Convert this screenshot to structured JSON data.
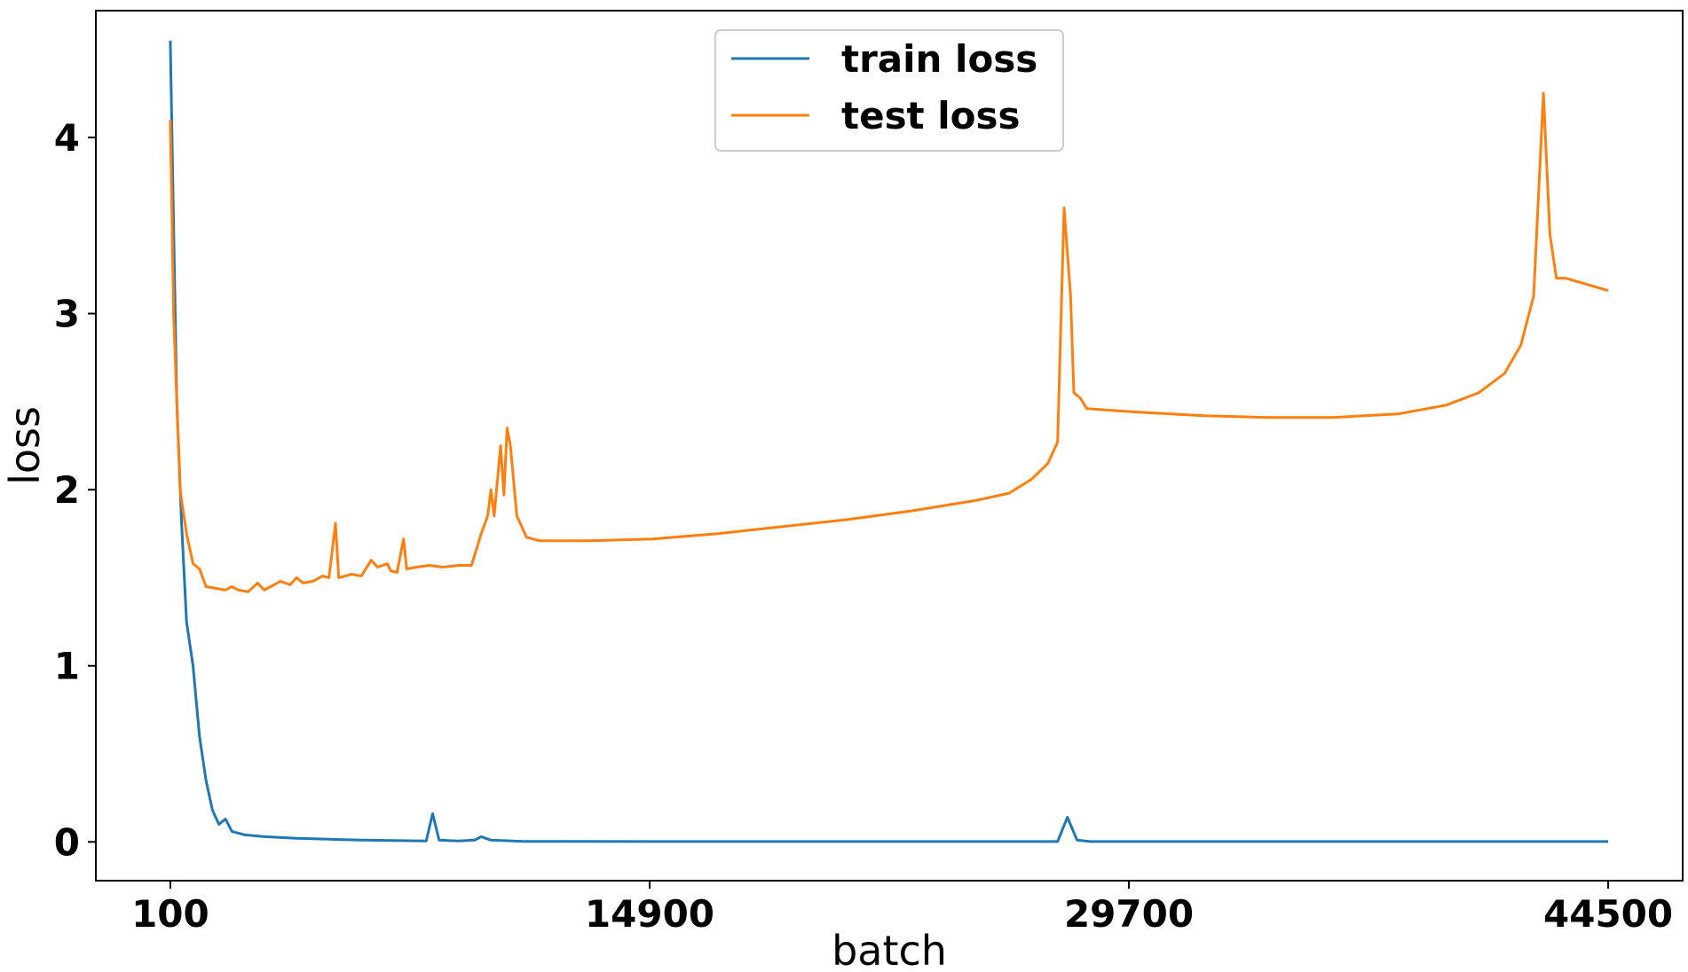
{
  "chart_data": {
    "type": "line",
    "xlabel": "batch",
    "ylabel": "loss",
    "x_ticks": [
      100,
      14900,
      29700,
      44500
    ],
    "y_ticks": [
      0,
      1,
      2,
      3,
      4
    ],
    "xlim": [
      -2200,
      46800
    ],
    "ylim": [
      -0.22,
      4.72
    ],
    "grid": false,
    "legend": "top-center",
    "series": [
      {
        "name": "train loss",
        "color": "#1f77b4",
        "points": [
          [
            100,
            4.55
          ],
          [
            200,
            3.5
          ],
          [
            300,
            2.5
          ],
          [
            450,
            1.8
          ],
          [
            600,
            1.25
          ],
          [
            800,
            1.0
          ],
          [
            1000,
            0.6
          ],
          [
            1200,
            0.35
          ],
          [
            1400,
            0.18
          ],
          [
            1600,
            0.1
          ],
          [
            1800,
            0.13
          ],
          [
            2000,
            0.06
          ],
          [
            2400,
            0.04
          ],
          [
            3000,
            0.03
          ],
          [
            4000,
            0.02
          ],
          [
            5000,
            0.015
          ],
          [
            6000,
            0.01
          ],
          [
            7000,
            0.008
          ],
          [
            8000,
            0.005
          ],
          [
            8200,
            0.16
          ],
          [
            8400,
            0.01
          ],
          [
            9000,
            0.005
          ],
          [
            9500,
            0.01
          ],
          [
            9700,
            0.03
          ],
          [
            10000,
            0.01
          ],
          [
            11000,
            0.003
          ],
          [
            15000,
            0.002
          ],
          [
            20000,
            0.002
          ],
          [
            27500,
            0.002
          ],
          [
            27800,
            0.14
          ],
          [
            28100,
            0.01
          ],
          [
            28500,
            0.002
          ],
          [
            35000,
            0.002
          ],
          [
            42000,
            0.002
          ],
          [
            44500,
            0.002
          ]
        ]
      },
      {
        "name": "test loss",
        "color": "#ff7f0e",
        "points": [
          [
            100,
            4.1
          ],
          [
            200,
            3.0
          ],
          [
            400,
            2.0
          ],
          [
            600,
            1.75
          ],
          [
            800,
            1.58
          ],
          [
            1000,
            1.55
          ],
          [
            1200,
            1.45
          ],
          [
            1500,
            1.44
          ],
          [
            1800,
            1.43
          ],
          [
            2000,
            1.45
          ],
          [
            2200,
            1.43
          ],
          [
            2500,
            1.42
          ],
          [
            2800,
            1.47
          ],
          [
            3000,
            1.43
          ],
          [
            3200,
            1.45
          ],
          [
            3500,
            1.48
          ],
          [
            3800,
            1.46
          ],
          [
            4000,
            1.5
          ],
          [
            4200,
            1.47
          ],
          [
            4500,
            1.48
          ],
          [
            4800,
            1.51
          ],
          [
            5000,
            1.5
          ],
          [
            5200,
            1.81
          ],
          [
            5300,
            1.5
          ],
          [
            5700,
            1.52
          ],
          [
            6000,
            1.51
          ],
          [
            6300,
            1.6
          ],
          [
            6500,
            1.56
          ],
          [
            6800,
            1.58
          ],
          [
            6900,
            1.54
          ],
          [
            7100,
            1.53
          ],
          [
            7300,
            1.72
          ],
          [
            7400,
            1.55
          ],
          [
            7700,
            1.56
          ],
          [
            8100,
            1.57
          ],
          [
            8500,
            1.56
          ],
          [
            9000,
            1.57
          ],
          [
            9400,
            1.57
          ],
          [
            9700,
            1.75
          ],
          [
            9900,
            1.85
          ],
          [
            10000,
            2.0
          ],
          [
            10100,
            1.85
          ],
          [
            10300,
            2.25
          ],
          [
            10400,
            1.97
          ],
          [
            10500,
            2.35
          ],
          [
            10600,
            2.25
          ],
          [
            10800,
            1.85
          ],
          [
            11100,
            1.73
          ],
          [
            11500,
            1.71
          ],
          [
            13000,
            1.71
          ],
          [
            15000,
            1.72
          ],
          [
            17000,
            1.75
          ],
          [
            19000,
            1.79
          ],
          [
            21000,
            1.83
          ],
          [
            23000,
            1.88
          ],
          [
            25000,
            1.94
          ],
          [
            26000,
            1.98
          ],
          [
            26700,
            2.06
          ],
          [
            27200,
            2.15
          ],
          [
            27500,
            2.27
          ],
          [
            27700,
            3.6
          ],
          [
            27900,
            3.1
          ],
          [
            28000,
            2.55
          ],
          [
            28200,
            2.52
          ],
          [
            28400,
            2.46
          ],
          [
            30000,
            2.44
          ],
          [
            32000,
            2.42
          ],
          [
            34000,
            2.41
          ],
          [
            36000,
            2.41
          ],
          [
            38000,
            2.43
          ],
          [
            39500,
            2.48
          ],
          [
            40500,
            2.55
          ],
          [
            41300,
            2.66
          ],
          [
            41800,
            2.82
          ],
          [
            42200,
            3.1
          ],
          [
            42500,
            4.25
          ],
          [
            42700,
            3.45
          ],
          [
            42900,
            3.2
          ],
          [
            43200,
            3.2
          ],
          [
            44500,
            3.13
          ]
        ]
      }
    ]
  }
}
